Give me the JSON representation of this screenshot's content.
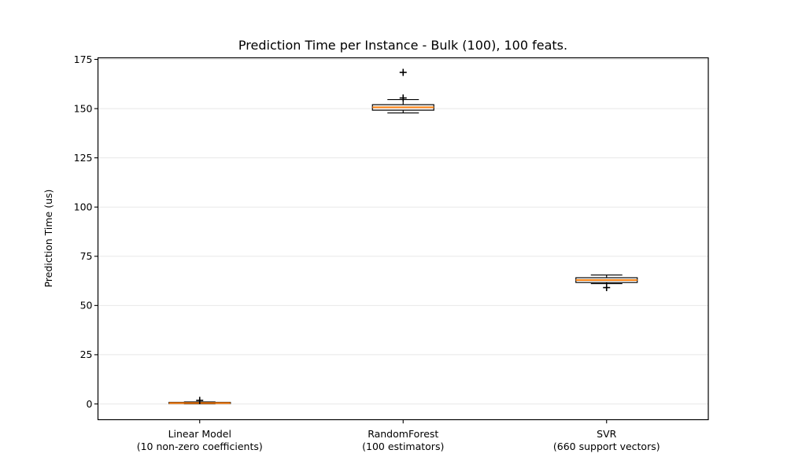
{
  "chart_data": {
    "type": "boxplot",
    "title": "Prediction Time per Instance - Bulk (100), 100 feats.",
    "xlabel": "",
    "ylabel": "Prediction Time (us)",
    "ylim": [
      -8,
      175.8
    ],
    "yticks": [
      0,
      25,
      50,
      75,
      100,
      125,
      150,
      175
    ],
    "grid": "horizontal",
    "legend": "none",
    "colors": {
      "median": "#ff7f0e",
      "box_edge": "#000000",
      "grid": "#e8e8e8",
      "background": "#ffffff",
      "text": "#000000"
    },
    "boxes": [
      {
        "category": "Linear Model",
        "category_detail": "(10 non-zero coefficients)",
        "whislo": 0.1,
        "q1": 0.2,
        "med": 0.45,
        "q3": 0.8,
        "whishi": 1.0,
        "fliers": [
          1.8
        ]
      },
      {
        "category": "RandomForest",
        "category_detail": "(100 estimators)",
        "whislo": 147.8,
        "q1": 149.2,
        "med": 150.7,
        "q3": 152.0,
        "whishi": 154.6,
        "fliers": [
          155.4,
          168.4
        ]
      },
      {
        "category": "SVR",
        "category_detail": "(660 support vectors)",
        "whislo": 61.1,
        "q1": 61.7,
        "med": 62.9,
        "q3": 64.1,
        "whishi": 65.5,
        "fliers": [
          59.1
        ]
      }
    ]
  }
}
